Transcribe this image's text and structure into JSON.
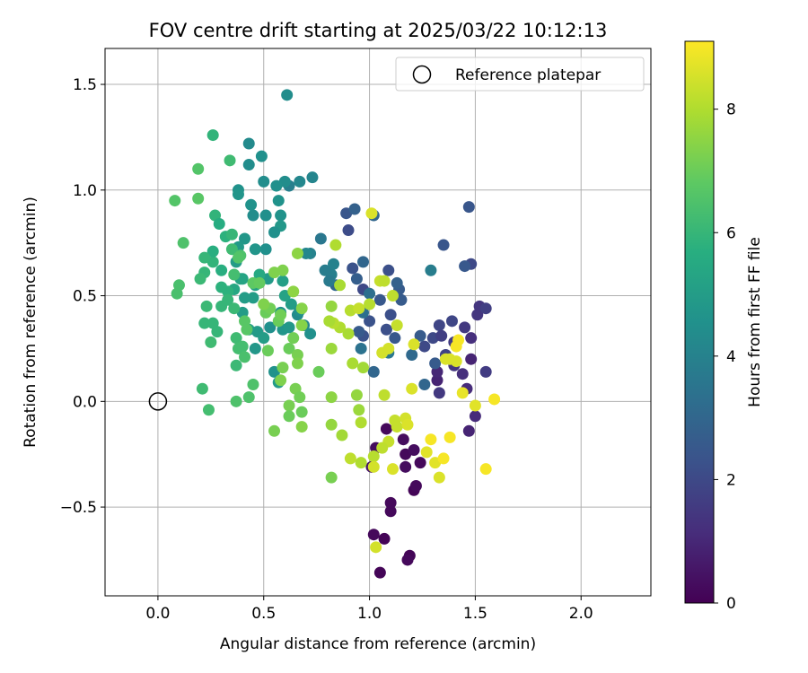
{
  "chart_data": {
    "type": "scatter",
    "title": "FOV centre drift starting at 2025/03/22 10:12:13",
    "xlabel": "Angular distance from reference (arcmin)",
    "ylabel": "Rotation from reference (arcmin)",
    "xlim": [
      -0.25,
      2.33
    ],
    "ylim": [
      -0.92,
      1.67
    ],
    "x_ticks": [
      0.0,
      0.5,
      1.0,
      1.5,
      2.0
    ],
    "x_tick_labels": [
      "0.0",
      "0.5",
      "1.0",
      "1.5",
      "2.0"
    ],
    "y_ticks": [
      -0.5,
      0.0,
      0.5,
      1.0,
      1.5
    ],
    "y_tick_labels": [
      "−0.5",
      "0.0",
      "0.5",
      "1.0",
      "1.5"
    ],
    "grid": true,
    "legend": {
      "placement": "top-right",
      "entries": [
        "Reference platepar"
      ]
    },
    "reference_point": {
      "x": 0.0,
      "y": 0.0,
      "label": "Reference platepar"
    },
    "colorbar": {
      "label": "Hours from first FF file",
      "min": 0,
      "max": 9.1,
      "ticks": [
        0,
        2,
        4,
        6,
        8
      ],
      "tick_labels": [
        "0",
        "2",
        "4",
        "6",
        "8"
      ],
      "colormap": "viridis"
    },
    "points": [
      [
        1.05,
        -0.81,
        0.1
      ],
      [
        1.02,
        -0.63,
        0.2
      ],
      [
        1.07,
        -0.65,
        0.1
      ],
      [
        1.19,
        -0.73,
        0.1
      ],
      [
        1.18,
        -0.75,
        0.2
      ],
      [
        1.1,
        -0.52,
        0.2
      ],
      [
        1.1,
        -0.48,
        0.2
      ],
      [
        1.21,
        -0.42,
        0.1
      ],
      [
        1.22,
        -0.4,
        0.2
      ],
      [
        1.17,
        -0.31,
        0.3
      ],
      [
        1.24,
        -0.29,
        0.2
      ],
      [
        1.17,
        -0.25,
        0.2
      ],
      [
        1.21,
        -0.23,
        0.3
      ],
      [
        1.16,
        -0.18,
        0.3
      ],
      [
        1.03,
        -0.22,
        0.3
      ],
      [
        1.08,
        -0.13,
        0.2
      ],
      [
        1.01,
        -0.31,
        0.5
      ],
      [
        1.47,
        -0.14,
        0.9
      ],
      [
        1.5,
        -0.07,
        1.1
      ],
      [
        1.55,
        0.14,
        1.6
      ],
      [
        1.46,
        0.06,
        1.1
      ],
      [
        1.44,
        0.13,
        1.2
      ],
      [
        1.48,
        0.2,
        0.9
      ],
      [
        1.4,
        0.28,
        1.6
      ],
      [
        1.32,
        0.1,
        0.9
      ],
      [
        1.32,
        0.14,
        1.0
      ],
      [
        1.33,
        0.04,
        1.5
      ],
      [
        1.26,
        0.08,
        3.0
      ],
      [
        1.3,
        0.3,
        2.0
      ],
      [
        1.33,
        0.36,
        1.9
      ],
      [
        1.34,
        0.31,
        1.7
      ],
      [
        1.39,
        0.38,
        1.9
      ],
      [
        1.45,
        0.35,
        1.5
      ],
      [
        1.51,
        0.41,
        1.4
      ],
      [
        1.52,
        0.45,
        1.4
      ],
      [
        1.55,
        0.44,
        1.7
      ],
      [
        1.48,
        0.3,
        1.2
      ],
      [
        1.4,
        0.17,
        1.4
      ],
      [
        1.36,
        0.22,
        1.8
      ],
      [
        1.31,
        0.18,
        2.6
      ],
      [
        1.26,
        0.26,
        2.0
      ],
      [
        1.24,
        0.31,
        2.6
      ],
      [
        1.2,
        0.22,
        3.1
      ],
      [
        1.35,
        0.74,
        2.4
      ],
      [
        1.47,
        0.92,
        2.4
      ],
      [
        1.48,
        0.65,
        2.0
      ],
      [
        1.45,
        0.64,
        2.5
      ],
      [
        1.29,
        0.62,
        3.8
      ],
      [
        1.14,
        0.53,
        2.6
      ],
      [
        1.15,
        0.48,
        2.6
      ],
      [
        1.13,
        0.56,
        2.8
      ],
      [
        1.09,
        0.62,
        2.2
      ],
      [
        1.1,
        0.41,
        2.2
      ],
      [
        1.12,
        0.3,
        2.5
      ],
      [
        1.08,
        0.34,
        2.2
      ],
      [
        1.05,
        0.48,
        2.5
      ],
      [
        1.0,
        0.38,
        2.3
      ],
      [
        0.97,
        0.53,
        2.0
      ],
      [
        0.94,
        0.58,
        2.7
      ],
      [
        0.92,
        0.63,
        2.3
      ],
      [
        0.89,
        0.89,
        2.4
      ],
      [
        0.9,
        0.81,
        2.1
      ],
      [
        0.93,
        0.91,
        2.8
      ],
      [
        0.97,
        0.66,
        3.0
      ],
      [
        1.02,
        0.88,
        3.0
      ],
      [
        0.97,
        0.31,
        2.3
      ],
      [
        0.95,
        0.33,
        2.6
      ],
      [
        1.02,
        0.14,
        3.0
      ],
      [
        1.09,
        0.23,
        3.6
      ],
      [
        1.0,
        0.51,
        3.3
      ],
      [
        0.97,
        0.42,
        3.3
      ],
      [
        0.96,
        0.25,
        3.4
      ],
      [
        0.84,
        0.55,
        3.0
      ],
      [
        0.82,
        0.6,
        3.9
      ],
      [
        0.81,
        0.57,
        3.7
      ],
      [
        0.83,
        0.65,
        4.0
      ],
      [
        0.77,
        0.77,
        3.6
      ],
      [
        0.79,
        0.62,
        3.8
      ],
      [
        0.72,
        0.7,
        4.0
      ],
      [
        0.7,
        0.7,
        4.2
      ],
      [
        0.73,
        1.06,
        4.1
      ],
      [
        0.67,
        1.04,
        4.2
      ],
      [
        0.62,
        1.02,
        3.9
      ],
      [
        0.6,
        1.04,
        4.4
      ],
      [
        0.61,
        1.45,
        4.4
      ],
      [
        0.56,
        1.02,
        4.5
      ],
      [
        0.5,
        1.04,
        4.4
      ],
      [
        0.49,
        1.16,
        4.5
      ],
      [
        0.43,
        1.22,
        4.3
      ],
      [
        0.43,
        1.12,
        4.4
      ],
      [
        0.38,
        1.0,
        4.6
      ],
      [
        0.38,
        0.98,
        4.7
      ],
      [
        0.44,
        0.93,
        4.6
      ],
      [
        0.45,
        0.88,
        4.4
      ],
      [
        0.51,
        0.88,
        4.5
      ],
      [
        0.57,
        0.95,
        4.6
      ],
      [
        0.58,
        0.88,
        4.6
      ],
      [
        0.58,
        0.83,
        4.8
      ],
      [
        0.55,
        0.8,
        4.5
      ],
      [
        0.51,
        0.72,
        4.5
      ],
      [
        0.46,
        0.72,
        4.7
      ],
      [
        0.41,
        0.77,
        4.8
      ],
      [
        0.38,
        0.73,
        4.9
      ],
      [
        0.37,
        0.66,
        5.0
      ],
      [
        0.4,
        0.58,
        5.2
      ],
      [
        0.46,
        0.55,
        5.2
      ],
      [
        0.45,
        0.49,
        5.0
      ],
      [
        0.41,
        0.49,
        5.0
      ],
      [
        0.4,
        0.42,
        5.0
      ],
      [
        0.43,
        0.34,
        5.1
      ],
      [
        0.47,
        0.33,
        4.9
      ],
      [
        0.5,
        0.3,
        5.0
      ],
      [
        0.46,
        0.25,
        4.8
      ],
      [
        0.53,
        0.35,
        4.5
      ],
      [
        0.59,
        0.34,
        4.7
      ],
      [
        0.62,
        0.35,
        4.8
      ],
      [
        0.58,
        0.42,
        4.6
      ],
      [
        0.63,
        0.46,
        5.0
      ],
      [
        0.66,
        0.41,
        4.3
      ],
      [
        0.69,
        0.36,
        4.2
      ],
      [
        0.72,
        0.32,
        4.5
      ],
      [
        0.67,
        0.43,
        4.5
      ],
      [
        0.55,
        0.14,
        4.6
      ],
      [
        0.57,
        0.09,
        4.9
      ],
      [
        0.6,
        0.5,
        5.2
      ],
      [
        0.59,
        0.57,
        5.1
      ],
      [
        0.52,
        0.58,
        4.9
      ],
      [
        0.48,
        0.6,
        5.5
      ],
      [
        0.39,
        0.58,
        5.3
      ],
      [
        0.36,
        0.53,
        5.4
      ],
      [
        0.33,
        0.52,
        5.8
      ],
      [
        0.3,
        0.54,
        5.8
      ],
      [
        0.3,
        0.62,
        5.7
      ],
      [
        0.26,
        0.66,
        5.9
      ],
      [
        0.26,
        0.71,
        5.7
      ],
      [
        0.22,
        0.68,
        6.0
      ],
      [
        0.22,
        0.61,
        6.0
      ],
      [
        0.2,
        0.58,
        6.1
      ],
      [
        0.23,
        0.45,
        6.1
      ],
      [
        0.22,
        0.37,
        6.0
      ],
      [
        0.26,
        0.37,
        6.0
      ],
      [
        0.28,
        0.33,
        6.0
      ],
      [
        0.3,
        0.45,
        6.0
      ],
      [
        0.33,
        0.48,
        6.0
      ],
      [
        0.36,
        0.44,
        6.1
      ],
      [
        0.37,
        0.3,
        6.2
      ],
      [
        0.38,
        0.25,
        6.3
      ],
      [
        0.37,
        0.17,
        6.1
      ],
      [
        0.4,
        0.26,
        6.3
      ],
      [
        0.41,
        0.21,
        6.4
      ],
      [
        0.43,
        0.02,
        6.5
      ],
      [
        0.45,
        0.08,
        6.5
      ],
      [
        0.37,
        0.0,
        6.5
      ],
      [
        0.21,
        0.06,
        6.2
      ],
      [
        0.24,
        -0.04,
        6.3
      ],
      [
        0.25,
        0.28,
        6.2
      ],
      [
        0.09,
        0.51,
        6.4
      ],
      [
        0.1,
        0.55,
        6.4
      ],
      [
        0.12,
        0.75,
        6.5
      ],
      [
        0.08,
        0.95,
        6.6
      ],
      [
        0.19,
        1.1,
        6.6
      ],
      [
        0.19,
        0.96,
        6.7
      ],
      [
        0.26,
        1.26,
        5.9
      ],
      [
        0.34,
        1.14,
        6.2
      ],
      [
        0.27,
        0.88,
        5.9
      ],
      [
        0.29,
        0.84,
        5.6
      ],
      [
        0.32,
        0.78,
        5.8
      ],
      [
        0.35,
        0.79,
        6.0
      ],
      [
        0.35,
        0.72,
        6.2
      ],
      [
        0.36,
        0.6,
        6.3
      ],
      [
        0.39,
        0.69,
        6.5
      ],
      [
        0.38,
        0.68,
        6.6
      ],
      [
        0.41,
        0.38,
        6.7
      ],
      [
        0.42,
        0.34,
        6.7
      ],
      [
        0.45,
        0.56,
        6.8
      ],
      [
        0.48,
        0.56,
        6.9
      ],
      [
        0.51,
        0.42,
        7.0
      ],
      [
        0.53,
        0.44,
        7.1
      ],
      [
        0.52,
        0.24,
        7.0
      ],
      [
        0.57,
        0.38,
        7.0
      ],
      [
        0.58,
        0.41,
        7.1
      ],
      [
        0.59,
        0.16,
        7.2
      ],
      [
        0.58,
        0.1,
        7.3
      ],
      [
        0.62,
        0.25,
        7.0
      ],
      [
        0.64,
        0.3,
        7.1
      ],
      [
        0.66,
        0.22,
        7.2
      ],
      [
        0.66,
        0.18,
        7.3
      ],
      [
        0.64,
        0.52,
        7.5
      ],
      [
        0.66,
        0.7,
        7.5
      ],
      [
        0.68,
        0.44,
        7.4
      ],
      [
        0.68,
        0.36,
        7.4
      ],
      [
        0.59,
        0.62,
        7.3
      ],
      [
        0.55,
        0.61,
        7.3
      ],
      [
        0.5,
        0.46,
        7.3
      ],
      [
        0.65,
        0.06,
        7.2
      ],
      [
        0.67,
        0.02,
        7.1
      ],
      [
        0.62,
        -0.02,
        7.2
      ],
      [
        0.62,
        -0.07,
        7.0
      ],
      [
        0.68,
        -0.05,
        7.0
      ],
      [
        0.68,
        -0.12,
        7.4
      ],
      [
        0.55,
        -0.14,
        7.2
      ],
      [
        0.76,
        0.14,
        7.0
      ],
      [
        0.82,
        0.25,
        7.7
      ],
      [
        0.82,
        0.02,
        7.5
      ],
      [
        0.82,
        -0.11,
        7.6
      ],
      [
        0.87,
        -0.16,
        7.8
      ],
      [
        0.82,
        -0.36,
        7.2
      ],
      [
        0.94,
        0.03,
        7.6
      ],
      [
        0.95,
        -0.04,
        7.7
      ],
      [
        0.96,
        -0.1,
        8.0
      ],
      [
        0.97,
        0.16,
        7.8
      ],
      [
        0.92,
        0.18,
        7.9
      ],
      [
        0.9,
        0.32,
        7.9
      ],
      [
        0.86,
        0.35,
        8.0
      ],
      [
        0.83,
        0.37,
        8.1
      ],
      [
        0.81,
        0.38,
        7.9
      ],
      [
        0.82,
        0.45,
        7.6
      ],
      [
        0.84,
        0.74,
        8.0
      ],
      [
        0.86,
        0.55,
        7.9
      ],
      [
        0.91,
        0.43,
        8.1
      ],
      [
        0.95,
        0.44,
        8.3
      ],
      [
        1.0,
        0.46,
        8.1
      ],
      [
        1.05,
        0.57,
        8.3
      ],
      [
        1.07,
        0.57,
        8.2
      ],
      [
        1.11,
        0.5,
        8.2
      ],
      [
        1.13,
        0.36,
        8.3
      ],
      [
        1.09,
        0.25,
        8.5
      ],
      [
        1.06,
        0.23,
        8.5
      ],
      [
        1.07,
        0.03,
        8.2
      ],
      [
        1.12,
        -0.09,
        8.3
      ],
      [
        1.13,
        -0.12,
        8.3
      ],
      [
        1.09,
        -0.19,
        8.3
      ],
      [
        1.06,
        -0.22,
        8.2
      ],
      [
        1.02,
        -0.26,
        8.1
      ],
      [
        0.96,
        -0.29,
        8.0
      ],
      [
        0.91,
        -0.27,
        8.2
      ],
      [
        1.02,
        -0.31,
        8.5
      ],
      [
        1.11,
        -0.32,
        8.6
      ],
      [
        1.03,
        -0.69,
        8.5
      ],
      [
        1.01,
        0.89,
        8.6
      ],
      [
        1.17,
        -0.08,
        8.5
      ],
      [
        1.18,
        -0.11,
        8.6
      ],
      [
        1.2,
        0.06,
        8.6
      ],
      [
        1.21,
        0.27,
        8.6
      ],
      [
        1.27,
        -0.24,
        8.7
      ],
      [
        1.31,
        -0.29,
        8.7
      ],
      [
        1.33,
        -0.36,
        8.6
      ],
      [
        1.36,
        0.2,
        8.6
      ],
      [
        1.38,
        0.2,
        8.6
      ],
      [
        1.41,
        0.19,
        8.6
      ],
      [
        1.44,
        0.04,
        8.8
      ],
      [
        1.5,
        -0.02,
        8.7
      ],
      [
        1.41,
        0.26,
        9.0
      ],
      [
        1.42,
        0.29,
        9.0
      ],
      [
        1.29,
        -0.18,
        9.0
      ],
      [
        1.35,
        -0.27,
        9.0
      ],
      [
        1.38,
        -0.17,
        9.0
      ],
      [
        1.55,
        -0.32,
        9.0
      ],
      [
        1.59,
        0.01,
        9.0
      ]
    ]
  }
}
